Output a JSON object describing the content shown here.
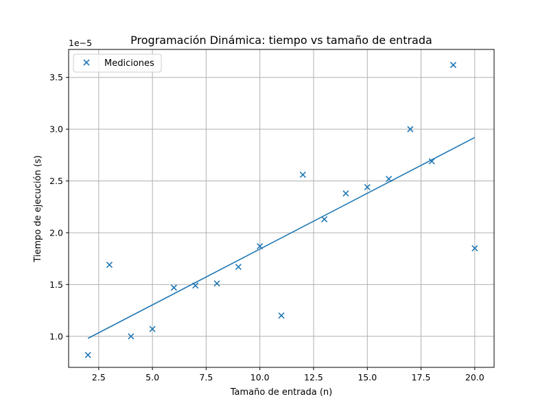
{
  "chart_data": {
    "type": "scatter",
    "title": "Programación Dinámica: tiempo vs tamaño de entrada",
    "xlabel": "Tamaño de entrada (n)",
    "ylabel": "Tiempo de ejecución (s)",
    "y_offset_label": "1e−5",
    "xlim": [
      1.1,
      20.9
    ],
    "ylim": [
      7e-06,
      3.77e-05
    ],
    "x_ticks": [
      2.5,
      5.0,
      7.5,
      10.0,
      12.5,
      15.0,
      17.5,
      20.0
    ],
    "x_tick_labels": [
      "2.5",
      "5.0",
      "7.5",
      "10.0",
      "12.5",
      "15.0",
      "17.5",
      "20.0"
    ],
    "y_ticks": [
      1e-05,
      1.5e-05,
      2e-05,
      2.5e-05,
      3e-05,
      3.5e-05
    ],
    "y_tick_labels": [
      "1.0",
      "1.5",
      "2.0",
      "2.5",
      "3.0",
      "3.5"
    ],
    "grid": true,
    "legend": {
      "position": "top-left",
      "entries": [
        "Mediciones"
      ]
    },
    "color": "#1f77b4",
    "series": [
      {
        "name": "Mediciones",
        "kind": "scatter",
        "marker": "x",
        "x": [
          2,
          3,
          4,
          5,
          6,
          7,
          8,
          9,
          10,
          11,
          12,
          13,
          14,
          15,
          16,
          17,
          18,
          19,
          20
        ],
        "y": [
          8.2e-06,
          1.69e-05,
          1e-05,
          1.07e-05,
          1.47e-05,
          1.49e-05,
          1.51e-05,
          1.67e-05,
          1.87e-05,
          1.2e-05,
          2.56e-05,
          2.13e-05,
          2.38e-05,
          2.44e-05,
          2.52e-05,
          3e-05,
          2.69e-05,
          3.62e-05,
          1.85e-05
        ]
      },
      {
        "kind": "line",
        "x": [
          2,
          20
        ],
        "y": [
          9.8e-06,
          2.92e-05
        ]
      }
    ]
  }
}
